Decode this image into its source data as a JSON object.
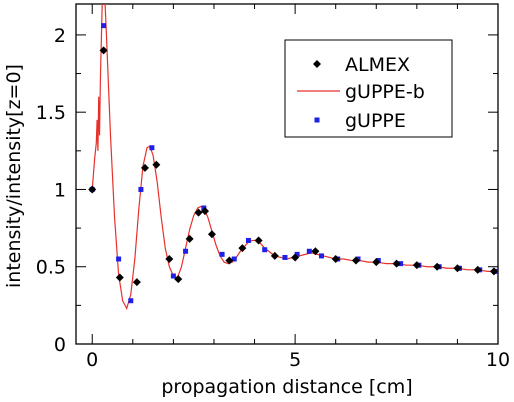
{
  "chart_data": {
    "type": "line",
    "xlabel": "propagation distance [cm]",
    "ylabel": "intensity/intensity[z=0]",
    "xlim": [
      -0.4,
      10
    ],
    "ylim": [
      0,
      2.2
    ],
    "xticks": [
      0,
      5,
      10
    ],
    "yticks": [
      0,
      0.5,
      1,
      1.5,
      2
    ],
    "xtick_labels": [
      "0",
      "5",
      "10"
    ],
    "ytick_labels": [
      "0",
      "0.5",
      "1",
      "1.5",
      "2"
    ],
    "grid": false,
    "legend": {
      "placement": "top-right",
      "entries": [
        "ALMEX",
        "gUPPE-b",
        "gUPPE"
      ]
    },
    "series": [
      {
        "name": "ALMEX",
        "style": "diamond-markers",
        "color": "#000000",
        "x": [
          0.0,
          0.28,
          0.68,
          1.1,
          1.3,
          1.58,
          1.9,
          2.12,
          2.4,
          2.62,
          2.78,
          2.95,
          3.38,
          3.7,
          4.1,
          4.5,
          5.0,
          5.5,
          6.0,
          6.5,
          7.0,
          7.5,
          8.0,
          8.5,
          9.0,
          9.5,
          9.9
        ],
        "y": [
          1.0,
          1.9,
          0.43,
          0.4,
          1.14,
          1.16,
          0.55,
          0.42,
          0.68,
          0.85,
          0.86,
          0.71,
          0.54,
          0.62,
          0.67,
          0.57,
          0.56,
          0.6,
          0.55,
          0.54,
          0.53,
          0.52,
          0.51,
          0.5,
          0.49,
          0.48,
          0.47
        ]
      },
      {
        "name": "gUPPE-b",
        "style": "line",
        "color": "#e8302a",
        "x": [
          0.0,
          0.06,
          0.1,
          0.12,
          0.14,
          0.16,
          0.18,
          0.2,
          0.25,
          0.3,
          0.35,
          0.45,
          0.55,
          0.65,
          0.75,
          0.85,
          0.95,
          1.05,
          1.15,
          1.25,
          1.35,
          1.42,
          1.5,
          1.6,
          1.7,
          1.8,
          1.9,
          2.0,
          2.1,
          2.2,
          2.3,
          2.4,
          2.5,
          2.6,
          2.68,
          2.75,
          2.85,
          2.95,
          3.05,
          3.15,
          3.25,
          3.35,
          3.45,
          3.55,
          3.65,
          3.75,
          3.85,
          3.95,
          4.05,
          4.15,
          4.25,
          4.35,
          4.5,
          4.65,
          4.8,
          4.95,
          5.1,
          5.25,
          5.4,
          5.55,
          5.7,
          5.85,
          6.0,
          6.2,
          6.4,
          6.6,
          6.8,
          7.0,
          7.25,
          7.5,
          7.75,
          8.0,
          8.25,
          8.5,
          8.75,
          9.0,
          9.25,
          9.5,
          9.75,
          10.0
        ],
        "y": [
          1.0,
          1.2,
          1.3,
          1.45,
          1.25,
          1.6,
          1.35,
          1.7,
          2.25,
          2.3,
          2.0,
          1.35,
          0.82,
          0.45,
          0.28,
          0.23,
          0.32,
          0.55,
          0.88,
          1.15,
          1.27,
          1.28,
          1.22,
          1.05,
          0.82,
          0.62,
          0.5,
          0.44,
          0.43,
          0.5,
          0.62,
          0.74,
          0.83,
          0.88,
          0.89,
          0.88,
          0.82,
          0.73,
          0.64,
          0.57,
          0.53,
          0.52,
          0.53,
          0.56,
          0.6,
          0.63,
          0.66,
          0.67,
          0.67,
          0.65,
          0.62,
          0.6,
          0.57,
          0.56,
          0.55,
          0.56,
          0.57,
          0.58,
          0.59,
          0.58,
          0.57,
          0.56,
          0.55,
          0.55,
          0.54,
          0.54,
          0.53,
          0.53,
          0.52,
          0.52,
          0.51,
          0.51,
          0.5,
          0.5,
          0.49,
          0.49,
          0.48,
          0.48,
          0.47,
          0.47
        ]
      },
      {
        "name": "gUPPE",
        "style": "square-markers",
        "color": "#1f1fe8",
        "x": [
          0.0,
          0.28,
          0.65,
          0.95,
          1.2,
          1.47,
          2.0,
          2.3,
          2.75,
          3.2,
          3.5,
          3.85,
          4.25,
          4.75,
          5.05,
          5.35,
          5.65,
          6.05,
          6.55,
          7.05,
          7.6,
          8.05,
          8.55,
          9.05,
          9.55,
          10.0
        ],
        "y": [
          1.0,
          2.06,
          0.55,
          0.28,
          1.0,
          1.27,
          0.44,
          0.6,
          0.88,
          0.58,
          0.55,
          0.67,
          0.61,
          0.56,
          0.58,
          0.6,
          0.57,
          0.55,
          0.55,
          0.54,
          0.52,
          0.51,
          0.5,
          0.49,
          0.48,
          0.47
        ]
      }
    ]
  }
}
